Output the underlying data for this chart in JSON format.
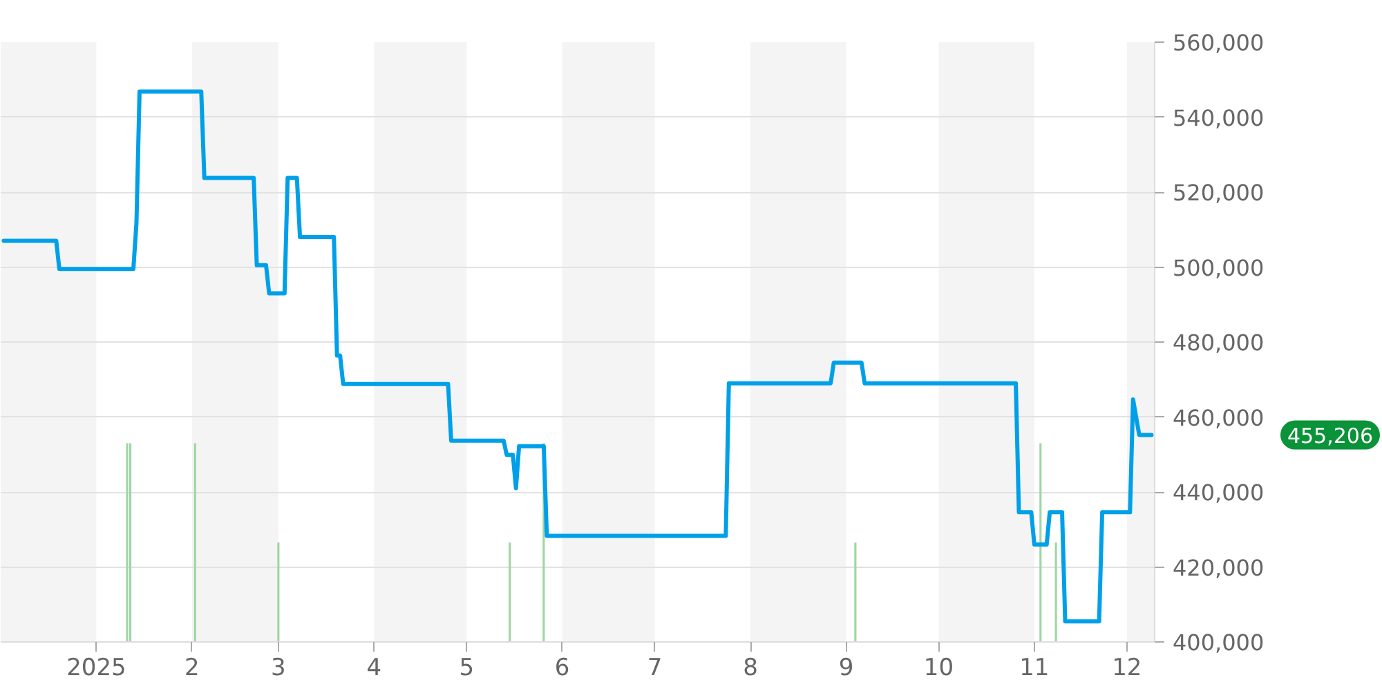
{
  "chart_data": {
    "type": "line",
    "series": [
      {
        "type": "bar",
        "color": "#9ed6a3",
        "x": [
          "2025-01-11",
          "2025-01-12",
          "2025-02-02",
          "2025-03-01",
          "2025-05-15",
          "2025-05-26",
          "2025-09-04",
          "2025-11-03",
          "2025-11-08"
        ],
        "values": [
          453000,
          453000,
          453000,
          426500,
          426500,
          453000,
          426500,
          453000,
          426500
        ]
      },
      {
        "color": "#00a0e9",
        "x": [
          "2024-12-02",
          "2024-12-19",
          "2024-12-20",
          "2025-01-13",
          "2025-01-14",
          "2025-01-15",
          "2025-02-04",
          "2025-02-05",
          "2025-02-21",
          "2025-02-22",
          "2025-02-25",
          "2025-02-26",
          "2025-03-03",
          "2025-03-04",
          "2025-03-07",
          "2025-03-08",
          "2025-03-19",
          "2025-03-20",
          "2025-03-21",
          "2025-03-22",
          "2025-04-25",
          "2025-04-26",
          "2025-05-13",
          "2025-05-14",
          "2025-05-16",
          "2025-05-17",
          "2025-05-18",
          "2025-05-26",
          "2025-05-27",
          "2025-07-24",
          "2025-07-25",
          "2025-08-27",
          "2025-08-28",
          "2025-09-06",
          "2025-09-07",
          "2025-10-26",
          "2025-10-27",
          "2025-10-31",
          "2025-11-01",
          "2025-11-05",
          "2025-11-06",
          "2025-11-10",
          "2025-11-11",
          "2025-11-22",
          "2025-11-23",
          "2025-12-02",
          "2025-12-03",
          "2025-12-05",
          "2025-12-09"
        ],
        "values": [
          507000,
          507000,
          499500,
          499500,
          511700,
          546800,
          546800,
          523800,
          523800,
          500500,
          500500,
          493000,
          493000,
          523800,
          523800,
          508000,
          508000,
          476400,
          476400,
          468800,
          468800,
          453700,
          453700,
          449900,
          449900,
          441000,
          452200,
          452200,
          428300,
          428300,
          469000,
          469000,
          474500,
          474500,
          469000,
          469000,
          434600,
          434600,
          426000,
          426000,
          434600,
          434600,
          405500,
          405500,
          434600,
          434600,
          464700,
          455206,
          455206
        ]
      }
    ],
    "xlim": [
      "2024-12-01",
      "2025-12-10"
    ],
    "xticks": [
      {
        "value": "2025-01-01",
        "label": "2025"
      },
      {
        "value": "2025-02-01",
        "label": "2"
      },
      {
        "value": "2025-03-01",
        "label": "3"
      },
      {
        "value": "2025-04-01",
        "label": "4"
      },
      {
        "value": "2025-05-01",
        "label": "5"
      },
      {
        "value": "2025-06-01",
        "label": "6"
      },
      {
        "value": "2025-07-01",
        "label": "7"
      },
      {
        "value": "2025-08-01",
        "label": "8"
      },
      {
        "value": "2025-09-01",
        "label": "9"
      },
      {
        "value": "2025-10-01",
        "label": "10"
      },
      {
        "value": "2025-11-01",
        "label": "11"
      },
      {
        "value": "2025-12-01",
        "label": "12"
      }
    ],
    "ylim": [
      400000,
      560000
    ],
    "yticks": [
      {
        "value": 400000,
        "label": "400,000"
      },
      {
        "value": 420000,
        "label": "420,000"
      },
      {
        "value": 440000,
        "label": "440,000"
      },
      {
        "value": 460000,
        "label": "460,000"
      },
      {
        "value": 480000,
        "label": "480,000"
      },
      {
        "value": 500000,
        "label": "500,000"
      },
      {
        "value": 520000,
        "label": "520,000"
      },
      {
        "value": 540000,
        "label": "540,000"
      },
      {
        "value": 560000,
        "label": "560,000"
      }
    ],
    "grid": "y",
    "bands": [
      {
        "axis": "x",
        "from": "2024-12-01",
        "to": "2025-01-01",
        "color": "#f4f4f4"
      },
      {
        "axis": "x",
        "from": "2025-02-01",
        "to": "2025-03-01",
        "color": "#f4f4f4"
      },
      {
        "axis": "x",
        "from": "2025-04-01",
        "to": "2025-05-01",
        "color": "#f4f4f4"
      },
      {
        "axis": "x",
        "from": "2025-06-01",
        "to": "2025-07-01",
        "color": "#f4f4f4"
      },
      {
        "axis": "x",
        "from": "2025-08-01",
        "to": "2025-09-01",
        "color": "#f4f4f4"
      },
      {
        "axis": "x",
        "from": "2025-10-01",
        "to": "2025-11-01",
        "color": "#f4f4f4"
      },
      {
        "axis": "x",
        "from": "2025-12-01",
        "to": "2025-12-10",
        "color": "#f4f4f4"
      }
    ],
    "annotations": [
      "455,206"
    ]
  }
}
